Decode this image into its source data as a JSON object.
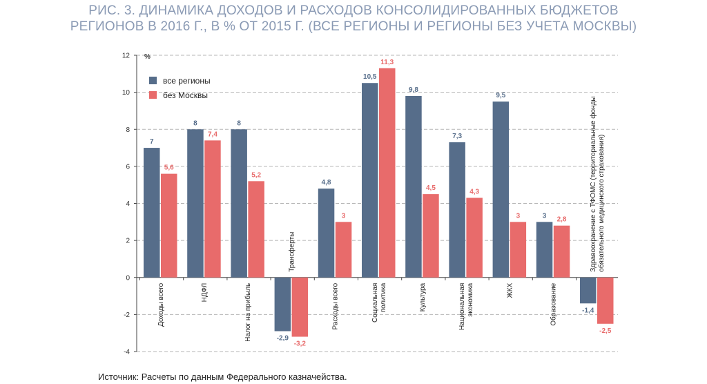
{
  "title_line1": "РИС. 3. ДИНАМИКА ДОХОДОВ И РАСХОДОВ КОНСОЛИДИРОВАННЫХ БЮДЖЕТОВ",
  "title_line2": "РЕГИОНОВ В 2016 Г., В % ОТ 2015 Г. (ВСЕ РЕГИОНЫ И РЕГИОНЫ БЕЗ УЧЕТА МОСКВЫ)",
  "source": "Источник: Расчеты по данным Федерального казначейства.",
  "colors": {
    "all_regions": "#566d8a",
    "without_moscow": "#e86b6b",
    "grid": "#b5b5b5"
  },
  "chart_data": {
    "type": "bar",
    "ylabel": "%",
    "ylim": [
      -4,
      12
    ],
    "yticks": [
      -4,
      -2,
      0,
      2,
      4,
      6,
      8,
      10,
      12
    ],
    "grid": true,
    "legend_position": "top-left",
    "categories": [
      [
        "Доходы всего"
      ],
      [
        "НДФЛ"
      ],
      [
        "Налог на прибыль"
      ],
      [
        "Трансферты"
      ],
      [
        "Расходы всего"
      ],
      [
        "Социальная",
        "политика"
      ],
      [
        "Культура"
      ],
      [
        "Национальная",
        "экономика"
      ],
      [
        "ЖКХ"
      ],
      [
        "Образование"
      ],
      [
        "Здравоохранение с ТФОМС (территориальные фонды",
        "обязательного медицинского страхования)"
      ]
    ],
    "series": [
      {
        "name": "все регионы",
        "values": [
          7,
          8,
          8,
          -2.9,
          4.8,
          10.5,
          9.8,
          7.3,
          9.5,
          3,
          -1.4
        ],
        "labels": [
          "7",
          "8",
          "8",
          "-2,9",
          "4,8",
          "10,5",
          "9,8",
          "7,3",
          "9,5",
          "3",
          "-1,4"
        ]
      },
      {
        "name": "без Москвы",
        "values": [
          5.6,
          7.4,
          5.2,
          -3.2,
          3,
          11.3,
          4.5,
          4.3,
          3,
          2.8,
          -2.5
        ],
        "labels": [
          "5,6",
          "7,4",
          "5,2",
          "-3,2",
          "3",
          "11,3",
          "4,5",
          "4,3",
          "3",
          "2,8",
          "-2,5"
        ]
      }
    ]
  }
}
